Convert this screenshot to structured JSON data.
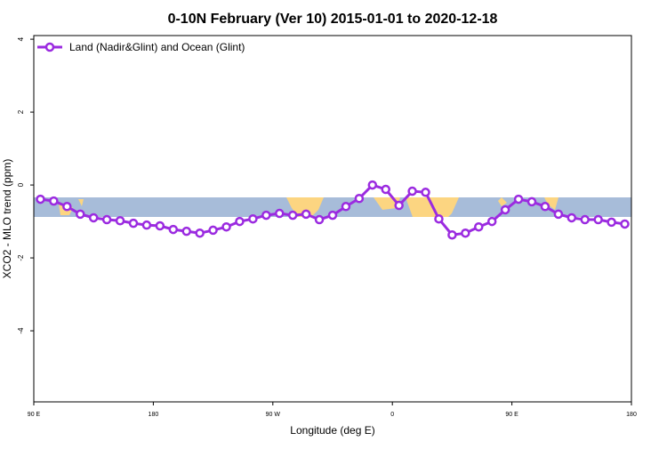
{
  "chart_data": {
    "type": "line",
    "title": "0-10N February (Ver 10)   2015-01-01 to 2020-12-18",
    "x_label": "Longitude (deg E)",
    "y_label": "XCO2 - MLO trend (ppm)",
    "x": [
      95,
      105,
      115,
      125,
      135,
      145,
      155,
      165,
      175,
      185,
      195,
      205,
      215,
      225,
      235,
      245,
      255,
      265,
      275,
      285,
      295,
      305,
      315,
      325,
      335,
      345,
      355,
      365,
      375,
      385,
      395,
      405,
      415,
      425,
      435,
      445,
      455,
      465,
      475,
      485,
      495,
      505,
      515,
      525,
      535
    ],
    "series": [
      {
        "name": "Land (Nadir&Glint) and Ocean (Glint)",
        "color": "#9b2be0",
        "values": [
          -0.39,
          -0.44,
          -0.59,
          -0.8,
          -0.9,
          -0.95,
          -0.98,
          -1.05,
          -1.1,
          -1.12,
          -1.22,
          -1.27,
          -1.32,
          -1.24,
          -1.15,
          -1.0,
          -0.93,
          -0.83,
          -0.78,
          -0.83,
          -0.8,
          -0.95,
          -0.83,
          -0.59,
          -0.37,
          0.0,
          -0.12,
          -0.56,
          -0.17,
          -0.2,
          -0.93,
          -1.37,
          -1.32,
          -1.15,
          -1.0,
          -0.68,
          -0.39,
          -0.46,
          -0.59,
          -0.8,
          -0.9,
          -0.95,
          -0.95,
          -1.02,
          -1.07
        ]
      }
    ],
    "xlim": [
      90,
      540
    ],
    "xticks": [
      {
        "value": 90,
        "label": "90 E"
      },
      180,
      {
        "value": 270,
        "label": "90 W"
      },
      {
        "value": 360,
        "label": "0"
      },
      {
        "value": 450,
        "label": "90 E"
      },
      {
        "value": 540,
        "label": "180"
      }
    ],
    "ylim": [
      -5.95,
      4.1
    ],
    "yticks": [
      -4,
      -2,
      0,
      2,
      4
    ],
    "legend": "top-left"
  }
}
